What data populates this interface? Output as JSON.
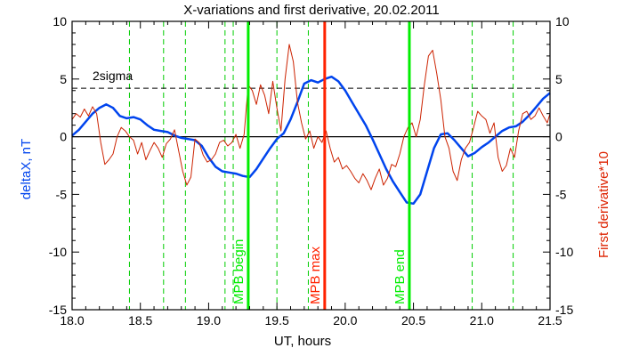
{
  "chart_data": {
    "type": "line",
    "title": "X-variations and first derivative, 20.02.2011",
    "xlabel": "UT, hours",
    "ylabel_left": "deltaX, nT",
    "ylabel_right": "First derivative*10",
    "xlim": [
      18.0,
      21.5
    ],
    "ylim_left": [
      -15,
      10
    ],
    "ylim_right": [
      -15,
      10
    ],
    "x_ticks": [
      "18.0",
      "18.5",
      "19.0",
      "19.5",
      "20.0",
      "20.5",
      "21.0",
      "21.5"
    ],
    "x_tick_values": [
      18.0,
      18.5,
      19.0,
      19.5,
      20.0,
      20.5,
      21.0,
      21.5
    ],
    "y_ticks_left": [
      "-15",
      "-10",
      "-5",
      "0",
      "5",
      "10"
    ],
    "y_ticks_right": [
      "-15",
      "-10",
      "-5",
      "0",
      "5",
      "10"
    ],
    "y_tick_values": [
      -15,
      -10,
      -5,
      0,
      5,
      10
    ],
    "threshold": {
      "label": "2sigma",
      "value": 4.2
    },
    "zero_line": 0,
    "green_dashed_x": [
      18.42,
      18.67,
      18.83,
      19.12,
      19.18,
      19.5,
      19.73,
      20.93,
      21.23
    ],
    "event_lines": [
      {
        "label": "MPB begin",
        "x": 19.29,
        "color": "#00ee00"
      },
      {
        "label": "MPB max",
        "x": 19.85,
        "color": "#ff2200"
      },
      {
        "label": "MPB end",
        "x": 20.47,
        "color": "#00ee00"
      }
    ],
    "colors": {
      "deltaX": "#0044ee",
      "derivative": "#cc2200",
      "sigma_line": "#000000",
      "grid_dashed": "#00cc00"
    },
    "series": [
      {
        "name": "deltaX, nT",
        "axis": "left",
        "x": [
          18.0,
          18.05,
          18.1,
          18.15,
          18.2,
          18.25,
          18.3,
          18.35,
          18.4,
          18.45,
          18.5,
          18.55,
          18.6,
          18.65,
          18.7,
          18.75,
          18.8,
          18.85,
          18.9,
          18.95,
          19.0,
          19.05,
          19.1,
          19.15,
          19.2,
          19.25,
          19.3,
          19.35,
          19.4,
          19.45,
          19.5,
          19.55,
          19.6,
          19.65,
          19.7,
          19.75,
          19.8,
          19.85,
          19.9,
          19.95,
          20.0,
          20.05,
          20.1,
          20.15,
          20.2,
          20.25,
          20.3,
          20.35,
          20.4,
          20.45,
          20.5,
          20.55,
          20.6,
          20.65,
          20.7,
          20.75,
          20.8,
          20.85,
          20.9,
          20.95,
          21.0,
          21.05,
          21.1,
          21.15,
          21.2,
          21.25,
          21.3,
          21.35,
          21.4,
          21.45,
          21.5
        ],
        "values": [
          0.1,
          0.6,
          1.3,
          2.0,
          2.5,
          2.8,
          2.5,
          1.8,
          1.6,
          1.7,
          1.5,
          1.0,
          0.6,
          0.5,
          0.4,
          0.1,
          -0.1,
          -0.2,
          -0.3,
          -0.8,
          -1.8,
          -2.6,
          -3.0,
          -3.1,
          -3.2,
          -3.4,
          -3.5,
          -2.8,
          -1.9,
          -1.0,
          -0.2,
          0.3,
          1.5,
          3.0,
          4.6,
          4.9,
          4.7,
          5.0,
          5.2,
          4.8,
          4.0,
          3.0,
          2.0,
          1.0,
          -0.2,
          -1.5,
          -2.8,
          -3.9,
          -4.8,
          -5.7,
          -5.8,
          -5.0,
          -3.0,
          -1.0,
          0.2,
          0.3,
          -0.3,
          -1.0,
          -1.7,
          -1.4,
          -0.9,
          -0.5,
          0.0,
          0.5,
          0.8,
          0.9,
          1.3,
          1.9,
          2.6,
          3.3,
          3.8
        ]
      },
      {
        "name": "First derivative*10",
        "axis": "right",
        "x": [
          18.0,
          18.03,
          18.06,
          18.09,
          18.12,
          18.15,
          18.18,
          18.21,
          18.24,
          18.27,
          18.3,
          18.33,
          18.36,
          18.39,
          18.42,
          18.45,
          18.48,
          18.51,
          18.54,
          18.57,
          18.6,
          18.63,
          18.66,
          18.69,
          18.72,
          18.75,
          18.78,
          18.81,
          18.84,
          18.87,
          18.9,
          18.93,
          18.96,
          18.99,
          19.02,
          19.05,
          19.08,
          19.11,
          19.14,
          19.17,
          19.2,
          19.23,
          19.26,
          19.29,
          19.32,
          19.35,
          19.38,
          19.41,
          19.44,
          19.47,
          19.5,
          19.53,
          19.56,
          19.59,
          19.62,
          19.65,
          19.68,
          19.71,
          19.74,
          19.77,
          19.8,
          19.83,
          19.86,
          19.89,
          19.92,
          19.95,
          19.98,
          20.01,
          20.04,
          20.07,
          20.1,
          20.13,
          20.16,
          20.19,
          20.22,
          20.25,
          20.28,
          20.31,
          20.34,
          20.37,
          20.4,
          20.43,
          20.46,
          20.49,
          20.52,
          20.55,
          20.58,
          20.61,
          20.64,
          20.67,
          20.7,
          20.73,
          20.76,
          20.79,
          20.82,
          20.85,
          20.88,
          20.91,
          20.94,
          20.97,
          21.0,
          21.03,
          21.06,
          21.09,
          21.12,
          21.15,
          21.18,
          21.21,
          21.24,
          21.27,
          21.3,
          21.33,
          21.36,
          21.39,
          21.42,
          21.45,
          21.48,
          21.5
        ],
        "values": [
          1.5,
          2.0,
          1.7,
          2.4,
          1.8,
          2.6,
          2.0,
          -0.5,
          -2.4,
          -2.0,
          -1.5,
          0.0,
          0.8,
          0.5,
          0.0,
          -0.3,
          -1.5,
          -0.5,
          -2.0,
          -1.2,
          -0.5,
          -1.0,
          -1.8,
          -0.6,
          -0.2,
          0.6,
          -1.2,
          -3.0,
          -4.2,
          -3.5,
          -0.2,
          -0.5,
          -1.6,
          -2.2,
          -2.0,
          -1.5,
          -0.5,
          -0.3,
          -0.8,
          -0.5,
          0.2,
          -1.0,
          0.2,
          4.5,
          4.0,
          2.8,
          4.5,
          3.6,
          2.0,
          4.8,
          2.5,
          0.5,
          5.0,
          8.0,
          6.5,
          3.0,
          1.2,
          -0.2,
          0.5,
          -1.0,
          0.0,
          -0.5,
          0.5,
          -1.0,
          -2.2,
          -1.8,
          -2.8,
          -2.5,
          -3.0,
          -3.6,
          -4.0,
          -3.2,
          -3.8,
          -4.6,
          -3.6,
          -2.8,
          -4.2,
          -3.6,
          -2.4,
          -2.6,
          -1.5,
          0.0,
          0.8,
          1.2,
          0.0,
          1.5,
          4.5,
          7.0,
          7.5,
          5.5,
          3.2,
          0.0,
          -1.0,
          -3.0,
          -3.8,
          -2.0,
          -1.0,
          -0.5,
          0.8,
          2.2,
          1.8,
          1.5,
          0.3,
          1.2,
          -1.8,
          -3.0,
          -2.5,
          -1.0,
          -1.8,
          0.5,
          2.0,
          2.2,
          1.5,
          1.8,
          2.5,
          1.8,
          1.2,
          2.0
        ]
      }
    ]
  }
}
